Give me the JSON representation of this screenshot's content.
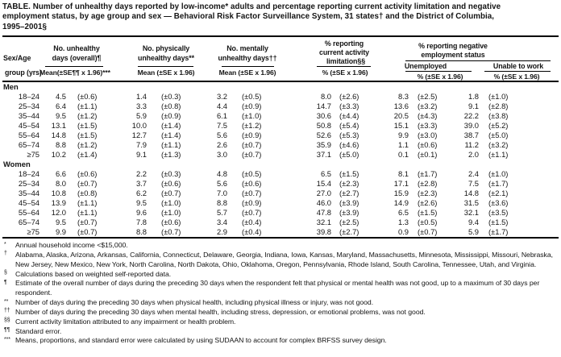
{
  "colors": {
    "background": "#ffffff",
    "text": "#141414",
    "rule": "#000000"
  },
  "title": {
    "lines": [
      "TABLE. Number of unhealthy days reported by low-income* adults and percentage reporting current activity limitation and negative",
      "employment status, by age group and sex — Behavioral Risk Factor Surveillance System, 31 states† and the District of Columbia,",
      "1995–2001§"
    ]
  },
  "header": {
    "sex_age_line1": "Sex/Age",
    "sex_age_line2": "group (yrs)",
    "groups": {
      "overall": {
        "line1": "No. unhealthy",
        "line2": "days (overall)¶",
        "sub": "Mean(±SE¶¶ x 1.96)***"
      },
      "physical": {
        "line1": "No. physically",
        "line2": "unhealthy days**",
        "sub": "Mean (±SE x 1.96)"
      },
      "mental": {
        "line1": "No. mentally",
        "line2": "unhealthy days††",
        "sub": "Mean (±SE x 1.96)"
      },
      "limitation": {
        "line1": "% reporting",
        "line2": "current activity",
        "line3": "limitation§§",
        "sub": "% (±SE x 1.96)"
      },
      "employment": {
        "line1": "% reporting negative",
        "line2": "employment status",
        "unemployed": {
          "label": "Unemployed",
          "sub": "% (±SE x 1.96)"
        },
        "unable": {
          "label": "Unable to work",
          "sub": "% (±SE x 1.96)"
        }
      }
    }
  },
  "sections": [
    {
      "label": "Men",
      "rows": [
        {
          "age": "18–24",
          "values": [
            "4.5",
            "(±0.6)",
            "1.4",
            "(±0.3)",
            "3.2",
            "(±0.5)",
            "8.0",
            "(±2.6)",
            "8.3",
            "(±2.5)",
            "1.8",
            "(±1.0)"
          ]
        },
        {
          "age": "25–34",
          "values": [
            "6.4",
            "(±1.1)",
            "3.3",
            "(±0.8)",
            "4.4",
            "(±0.9)",
            "14.7",
            "(±3.3)",
            "13.6",
            "(±3.2)",
            "9.1",
            "(±2.8)"
          ]
        },
        {
          "age": "35–44",
          "values": [
            "9.5",
            "(±1.2)",
            "5.9",
            "(±0.9)",
            "6.1",
            "(±1.0)",
            "30.6",
            "(±4.4)",
            "20.5",
            "(±4.3)",
            "22.2",
            "(±3.8)"
          ]
        },
        {
          "age": "45–54",
          "values": [
            "13.1",
            "(±1.5)",
            "10.0",
            "(±1.4)",
            "7.5",
            "(±1.2)",
            "50.8",
            "(±5.4)",
            "15.1",
            "(±3.3)",
            "39.0",
            "(±5.2)"
          ]
        },
        {
          "age": "55–64",
          "values": [
            "14.8",
            "(±1.5)",
            "12.7",
            "(±1.4)",
            "5.6",
            "(±0.9)",
            "52.6",
            "(±5.3)",
            "9.9",
            "(±3.0)",
            "38.7",
            "(±5.0)"
          ]
        },
        {
          "age": "65–74",
          "values": [
            "8.8",
            "(±1.2)",
            "7.9",
            "(±1.1)",
            "2.6",
            "(±0.7)",
            "35.9",
            "(±4.6)",
            "1.1",
            "(±0.6)",
            "11.2",
            "(±3.2)"
          ]
        },
        {
          "age": "≥75",
          "values": [
            "10.2",
            "(±1.4)",
            "9.1",
            "(±1.3)",
            "3.0",
            "(±0.7)",
            "37.1",
            "(±5.0)",
            "0.1",
            "(±0.1)",
            "2.0",
            "(±1.1)"
          ]
        }
      ]
    },
    {
      "label": "Women",
      "rows": [
        {
          "age": "18–24",
          "values": [
            "6.6",
            "(±0.6)",
            "2.2",
            "(±0.3)",
            "4.8",
            "(±0.5)",
            "6.5",
            "(±1.5)",
            "8.1",
            "(±1.7)",
            "2.4",
            "(±1.0)"
          ]
        },
        {
          "age": "25–34",
          "values": [
            "8.0",
            "(±0.7)",
            "3.7",
            "(±0.6)",
            "5.6",
            "(±0.6)",
            "15.4",
            "(±2.3)",
            "17.1",
            "(±2.8)",
            "7.5",
            "(±1.7)"
          ]
        },
        {
          "age": "35–44",
          "values": [
            "10.8",
            "(±0.8)",
            "6.2",
            "(±0.7)",
            "7.0",
            "(±0.7)",
            "27.0",
            "(±2.7)",
            "15.9",
            "(±2.3)",
            "14.8",
            "(±2.1)"
          ]
        },
        {
          "age": "45–54",
          "values": [
            "13.9",
            "(±1.1)",
            "9.5",
            "(±1.0)",
            "8.8",
            "(±0.9)",
            "46.0",
            "(±3.9)",
            "14.9",
            "(±2.6)",
            "31.5",
            "(±3.6)"
          ]
        },
        {
          "age": "55–64",
          "values": [
            "12.0",
            "(±1.1)",
            "9.6",
            "(±1.0)",
            "5.7",
            "(±0.7)",
            "47.8",
            "(±3.9)",
            "6.5",
            "(±1.5)",
            "32.1",
            "(±3.5)"
          ]
        },
        {
          "age": "65–74",
          "values": [
            "9.5",
            "(±0.7)",
            "7.8",
            "(±0.6)",
            "3.4",
            "(±0.4)",
            "32.1",
            "(±2.5)",
            "1.3",
            "(±0.5)",
            "9.4",
            "(±1.5)"
          ]
        },
        {
          "age": "≥75",
          "values": [
            "9.9",
            "(±0.7)",
            "8.8",
            "(±0.7)",
            "2.9",
            "(±0.4)",
            "39.8",
            "(±2.7)",
            "0.9",
            "(±0.7)",
            "5.9",
            "(±1.7)"
          ]
        }
      ]
    }
  ],
  "footnotes": [
    {
      "marker": "*",
      "text": "Annual household income <$15,000."
    },
    {
      "marker": "†",
      "text": "Alabama, Alaska, Arizona, Arkansas, California, Connecticut, Delaware, Georgia, Indiana, Iowa, Kansas, Maryland, Massachusetts, Minnesota, Mississippi, Missouri, Nebraska, New Jersey, New Mexico, New York, North Carolina, North Dakota, Ohio, Oklahoma, Oregon, Pennsylvania, Rhode Island, South Carolina, Tennessee, Utah, and Virginia."
    },
    {
      "marker": "§",
      "text": "Calculations based on weighted self-reported data."
    },
    {
      "marker": "¶",
      "text": "Estimate of the overall number of days during the preceding 30 days when the respondent felt that physical or mental health was not good, up to a maximum of 30 days per respondent."
    },
    {
      "marker": "**",
      "text": "Number of days during the preceding 30 days when physical health, including physical illness or injury, was not good."
    },
    {
      "marker": "††",
      "text": "Number of days during the preceding 30 days when mental health, including stress, depression, or emotional problems, was not good."
    },
    {
      "marker": "§§",
      "text": "Current activity limitation attributed to any impairment or health problem."
    },
    {
      "marker": "¶¶",
      "text": "Standard error."
    },
    {
      "marker": "***",
      "text": "Means, proportions, and standard error were calculated by using SUDAAN to account for complex BRFSS survey design."
    }
  ]
}
